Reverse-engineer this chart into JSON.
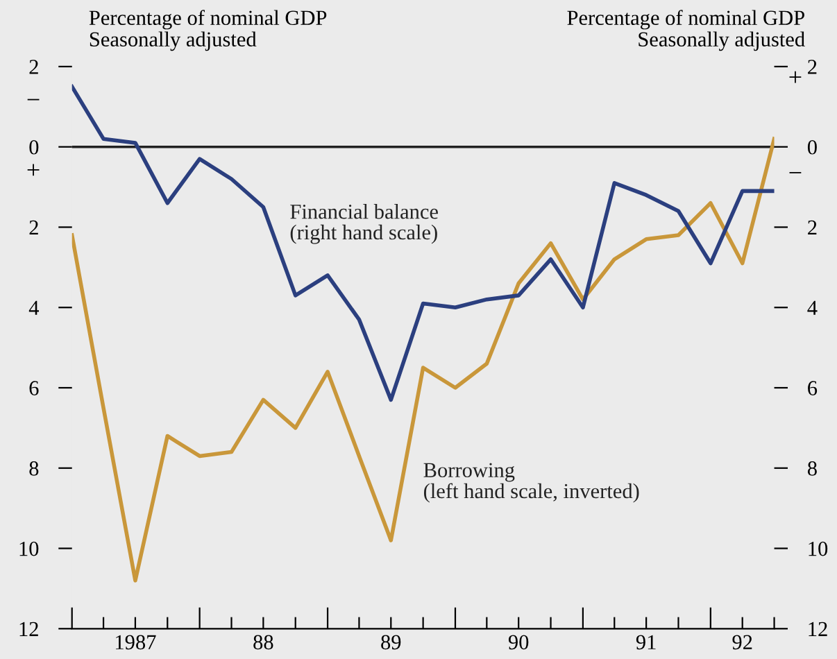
{
  "chart_data": {
    "type": "line",
    "ylabel": "Percentage of nominal GDP\nSeasonally adjusted",
    "y2label": "Percentage of nominal GDP\nSeasonally adjusted",
    "x": [
      "1987-01",
      "1987-04",
      "1987-07",
      "1987-10",
      "1988-01",
      "1988-04",
      "1988-07",
      "1988-10",
      "1989-01",
      "1989-04",
      "1989-07",
      "1989-10",
      "1990-01",
      "1990-04",
      "1990-07",
      "1990-10",
      "1991-01",
      "1991-04",
      "1991-07",
      "1991-10",
      "1992-01",
      "1992-04",
      "1992-07"
    ],
    "series": [
      {
        "name": "Borrowing\n(left hand scale, inverted)",
        "color": "#c9973a",
        "values": [
          2.2,
          6.5,
          10.8,
          7.2,
          7.7,
          7.6,
          6.3,
          7.0,
          5.6,
          7.7,
          9.8,
          5.5,
          6.0,
          5.4,
          3.4,
          2.4,
          3.8,
          2.8,
          2.3,
          2.2,
          1.4,
          2.9,
          -0.2
        ]
      },
      {
        "name": "Financial balance\n(right hand scale)",
        "color": "#2b3f7f",
        "axis": "y2",
        "values": [
          1.5,
          0.2,
          0.1,
          -1.4,
          -0.3,
          -0.8,
          -1.5,
          -3.7,
          -3.2,
          -4.3,
          -6.3,
          -3.9,
          -4.0,
          -3.8,
          -3.7,
          -2.8,
          -4.0,
          -0.9,
          -1.2,
          -1.6,
          -2.9,
          -1.1,
          -1.1
        ]
      }
    ],
    "xlim": [
      "1987-01",
      "1992-07"
    ],
    "xticks": [
      {
        "value": "1987-01",
        "label": null
      },
      {
        "value": "1987-04",
        "label": null
      },
      {
        "value": "1987-07",
        "label": "1987"
      },
      {
        "value": "1987-10",
        "label": null
      },
      {
        "value": "1988-01",
        "label": null
      },
      {
        "value": "1988-04",
        "label": null
      },
      {
        "value": "1988-07",
        "label": "88"
      },
      {
        "value": "1988-10",
        "label": null
      },
      {
        "value": "1989-01",
        "label": null
      },
      {
        "value": "1989-04",
        "label": null
      },
      {
        "value": "1989-07",
        "label": "89"
      },
      {
        "value": "1989-10",
        "label": null
      },
      {
        "value": "1990-01",
        "label": null
      },
      {
        "value": "1990-04",
        "label": null
      },
      {
        "value": "1990-07",
        "label": "90"
      },
      {
        "value": "1990-10",
        "label": null
      },
      {
        "value": "1991-01",
        "label": null
      },
      {
        "value": "1991-04",
        "label": null
      },
      {
        "value": "1991-07",
        "label": "91"
      },
      {
        "value": "1991-10",
        "label": null
      },
      {
        "value": "1992-01",
        "label": null
      },
      {
        "value": "1992-04",
        "label": "92"
      },
      {
        "value": "1992-07",
        "label": null
      }
    ],
    "ylim": [
      12,
      -2
    ],
    "yticks": [
      {
        "value": -2,
        "label": "2"
      },
      0,
      2,
      4,
      6,
      8,
      10,
      12
    ],
    "y2lim": [
      -12,
      2
    ],
    "y2ticks": [
      2,
      0,
      {
        "value": -2,
        "label": "2"
      },
      {
        "value": -4,
        "label": "4"
      },
      {
        "value": -6,
        "label": "6"
      },
      {
        "value": -8,
        "label": "8"
      },
      {
        "value": -10,
        "label": "10"
      },
      {
        "value": -12,
        "label": "12"
      }
    ],
    "ref_lines": [
      {
        "axis": "y",
        "value": 0,
        "color": "#222222"
      }
    ],
    "annotations": [
      "−",
      "+",
      "+",
      "−"
    ],
    "grid": false,
    "marker": "none",
    "line_style": "solid"
  }
}
